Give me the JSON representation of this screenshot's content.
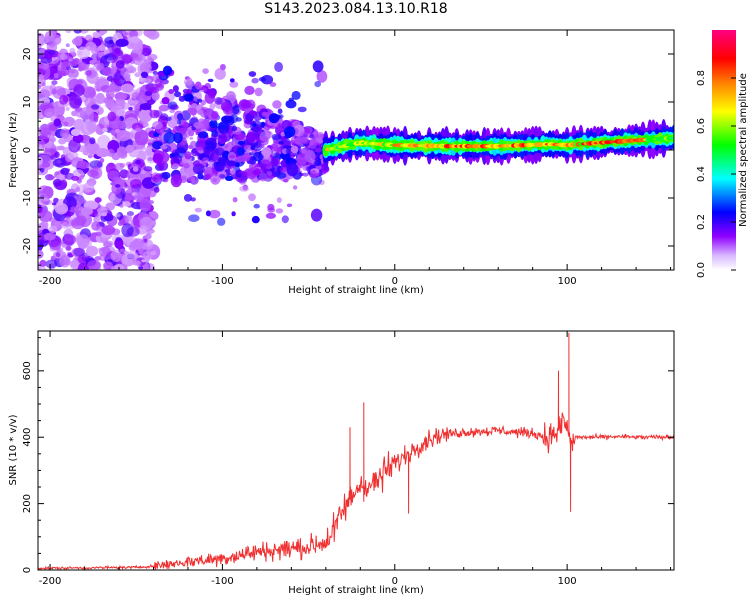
{
  "figure": {
    "title": "S143.2023.084.13.10.R18"
  },
  "chart_data": [
    {
      "type": "heatmap",
      "title": "",
      "xlabel": "Height of straight line (km)",
      "ylabel": "Frequency (Hz)",
      "xlim": [
        -207,
        162
      ],
      "ylim": [
        -25,
        25
      ],
      "x_ticks": [
        -200,
        -100,
        0,
        100
      ],
      "y_ticks": [
        -20,
        -10,
        0,
        10,
        20
      ],
      "colorbar": {
        "label": "Normalized spectral amplitude",
        "range": [
          0,
          1
        ],
        "ticks": [
          0.0,
          0.2,
          0.4,
          0.6,
          0.8
        ],
        "colors": [
          "#ffffff",
          "#8f00ff",
          "#0000ff",
          "#00ffff",
          "#00ff00",
          "#ffff00",
          "#ff8000",
          "#ff0000",
          "#ff0080"
        ]
      },
      "regions": [
        {
          "x": [
            -207,
            -140
          ],
          "f": [
            -25,
            25
          ],
          "amplitude": 0.05,
          "description": "scattered noise"
        },
        {
          "x": [
            -140,
            -40
          ],
          "f": [
            -15,
            18
          ],
          "amplitude": 0.15,
          "description": "noisy band"
        },
        {
          "x": [
            -40,
            162
          ],
          "f": [
            0.0,
            2.5
          ],
          "amplitude": 0.85,
          "description": "narrow line near 1-2 Hz"
        }
      ],
      "line_trace": [
        {
          "x": -40,
          "f": 0.0
        },
        {
          "x": -20,
          "f": 1.5
        },
        {
          "x": 0,
          "f": 1.0
        },
        {
          "x": 30,
          "f": 0.8
        },
        {
          "x": 60,
          "f": 0.8
        },
        {
          "x": 90,
          "f": 1.2
        },
        {
          "x": 100,
          "f": 1.0
        },
        {
          "x": 130,
          "f": 1.8
        },
        {
          "x": 162,
          "f": 2.5
        }
      ]
    },
    {
      "type": "line",
      "title": "",
      "xlabel": "Height of straight line (km)",
      "ylabel": "SNR (10 * v/v)",
      "xlim": [
        -207,
        162
      ],
      "ylim": [
        0,
        720
      ],
      "x_ticks": [
        -200,
        -100,
        0,
        100
      ],
      "y_ticks": [
        0,
        200,
        400,
        600
      ],
      "color": "#f03030",
      "series": [
        {
          "x": [
            -207,
            -190,
            -170,
            -150,
            -140,
            -130,
            -120,
            -110,
            -100,
            -90,
            -80,
            -70,
            -60,
            -50,
            -40,
            -35,
            -30,
            -25,
            -20,
            -15,
            -10,
            -5,
            0,
            5,
            10,
            15,
            20,
            25,
            30,
            35,
            40,
            50,
            60,
            70,
            80,
            85,
            90,
            95,
            98,
            100,
            102,
            105,
            110,
            120,
            130,
            140,
            150,
            162
          ],
          "values": [
            5,
            6,
            7,
            8,
            12,
            18,
            25,
            30,
            35,
            45,
            55,
            60,
            65,
            70,
            85,
            120,
            180,
            220,
            260,
            250,
            270,
            300,
            320,
            340,
            360,
            380,
            395,
            405,
            410,
            412,
            415,
            418,
            420,
            415,
            412,
            405,
            400,
            420,
            450,
            430,
            380,
            400,
            400,
            400,
            402,
            400,
            400,
            400
          ]
        }
      ],
      "spikes": [
        {
          "x": -18,
          "value": 505
        },
        {
          "x": -26,
          "value": 430
        },
        {
          "x": 95,
          "value": 600
        },
        {
          "x": 101,
          "value": 715
        },
        {
          "x": 102,
          "value": 175
        },
        {
          "x": 8,
          "value": 170
        }
      ]
    }
  ]
}
